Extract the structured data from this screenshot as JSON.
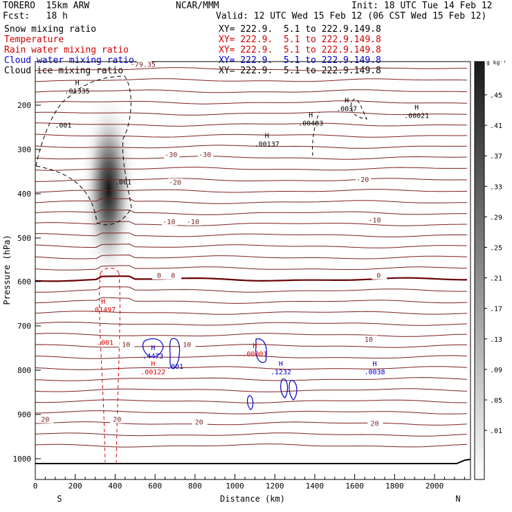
{
  "header": {
    "model": "TORERO  15km ARW",
    "org": "NCAR/MMM",
    "init": "Init: 18 UTC Tue 14 Feb 12",
    "fcst": "Fcst:   18 h",
    "valid": "Valid: 12 UTC Wed 15 Feb 12 (06 CST Wed 15 Feb 12)"
  },
  "legend": [
    {
      "name": "Snow mixing ratio",
      "xy": "XY= 222.9.  5.1 to 222.9.149.8",
      "color": "#000000"
    },
    {
      "name": "Temperature",
      "xy": "XY= 222.9.  5.1 to 222.9.149.8",
      "color": "#cc0000"
    },
    {
      "name": "Rain water mixing ratio",
      "xy": "XY= 222.9.  5.1 to 222.9.149.8",
      "color": "#cc0000"
    },
    {
      "name": "Cloud water mixing ratio",
      "xy": "XY= 222.9.  5.1 to 222.9.149.8",
      "color": "#0000cc"
    },
    {
      "name": "Cloud ice mixing ratio",
      "xy": "XY= 222.9.  5.1 to 222.9.149.8",
      "color": "#000000"
    }
  ],
  "colors": {
    "isotherm": "#7a1f1f",
    "zero_isotherm": "#6a0000",
    "rain": "#dd0000",
    "cloud_water": "#0000cc",
    "ice": "#000000"
  },
  "chart_data": {
    "type": "cross-section",
    "xlabel": "Distance (km)",
    "ylabel": "Pressure (hPa)",
    "xlim": [
      0,
      2180
    ],
    "ylim": [
      1050,
      100
    ],
    "x_ticks": [
      0,
      200,
      400,
      600,
      800,
      1000,
      1200,
      1400,
      1600,
      1800,
      2000
    ],
    "y_ticks": [
      200,
      300,
      400,
      500,
      600,
      700,
      800,
      900,
      1000
    ],
    "endpoint_left": "S",
    "endpoint_right": "N",
    "colorbar": {
      "unit": "g kg⁻¹",
      "ticks": [
        ".45",
        ".41",
        ".37",
        ".33",
        ".29",
        ".25",
        ".21",
        ".17",
        ".13",
        ".09",
        ".05",
        ".01"
      ]
    },
    "isotherm_labels": [
      {
        "text": "-79.35",
        "x": 540,
        "p": 110
      },
      {
        "text": "-30",
        "x": 680,
        "p": 316
      },
      {
        "text": "-30",
        "x": 850,
        "p": 316
      },
      {
        "text": "-20",
        "x": 700,
        "p": 378
      },
      {
        "text": "-20",
        "x": 1640,
        "p": 372
      },
      {
        "text": "-10",
        "x": 670,
        "p": 467
      },
      {
        "text": "-10",
        "x": 790,
        "p": 467
      },
      {
        "text": "-10",
        "x": 1700,
        "p": 463
      },
      {
        "text": "0",
        "x": 620,
        "p": 590
      },
      {
        "text": "0",
        "x": 690,
        "p": 590
      },
      {
        "text": "0",
        "x": 1720,
        "p": 590
      },
      {
        "text": "10",
        "x": 455,
        "p": 746
      },
      {
        "text": "10",
        "x": 760,
        "p": 746
      },
      {
        "text": "10",
        "x": 1670,
        "p": 734
      },
      {
        "text": "20",
        "x": 50,
        "p": 915
      },
      {
        "text": "20",
        "x": 410,
        "p": 915
      },
      {
        "text": "20",
        "x": 820,
        "p": 921
      },
      {
        "text": "20",
        "x": 1700,
        "p": 924
      }
    ],
    "extrema": [
      {
        "label": "H",
        "value": ".01335",
        "x": 210,
        "p": 170,
        "color": "#000000"
      },
      {
        "label": "",
        "value": ".001",
        "x": 140,
        "p": 248,
        "color": "#000000"
      },
      {
        "label": "",
        "value": ".001",
        "x": 440,
        "p": 376,
        "color": "#000000"
      },
      {
        "label": "H",
        "value": ".00137",
        "x": 1160,
        "p": 290,
        "color": "#000000"
      },
      {
        "label": "H",
        "value": ".00483",
        "x": 1380,
        "p": 243,
        "color": "#000000"
      },
      {
        "label": "H",
        "value": ".0037",
        "x": 1560,
        "p": 210,
        "color": "#000000"
      },
      {
        "label": "H",
        "value": ".00021",
        "x": 1910,
        "p": 226,
        "color": "#000000"
      },
      {
        "label": "H",
        "value": ".01497",
        "x": 340,
        "p": 666,
        "color": "#dd0000"
      },
      {
        "label": "",
        "value": ".001",
        "x": 350,
        "p": 740,
        "color": "#dd0000"
      },
      {
        "label": "H",
        "value": ".00001",
        "x": 1100,
        "p": 766,
        "color": "#dd0000"
      },
      {
        "label": "H",
        "value": ".00122",
        "x": 590,
        "p": 806,
        "color": "#dd0000"
      },
      {
        "label": "H",
        "value": ".4473",
        "x": 590,
        "p": 770,
        "color": "#0000cc"
      },
      {
        "label": "",
        "value": ".001",
        "x": 700,
        "p": 794,
        "color": "#0000cc"
      },
      {
        "label": "H",
        "value": ".1232",
        "x": 1230,
        "p": 806,
        "color": "#0000cc"
      },
      {
        "label": "H",
        "value": ".0038",
        "x": 1700,
        "p": 806,
        "color": "#0000cc"
      }
    ]
  }
}
